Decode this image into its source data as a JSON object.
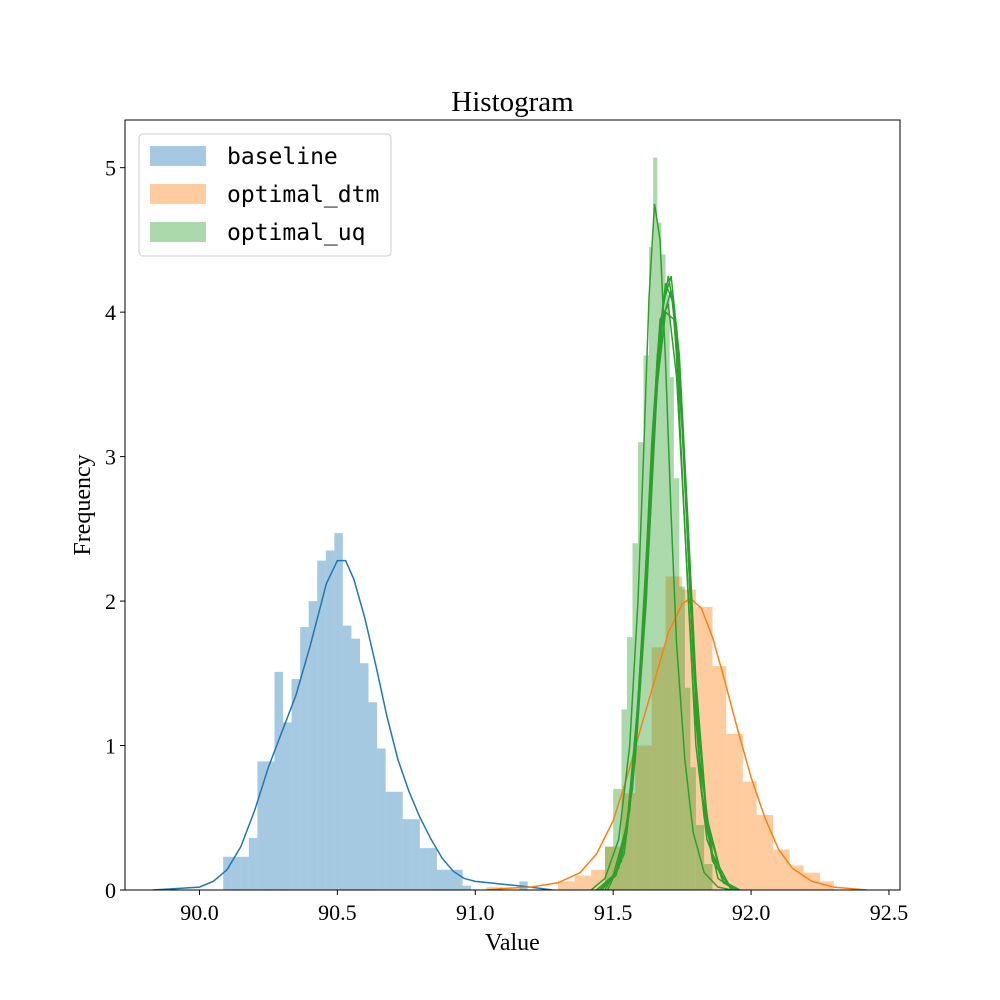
{
  "chart_data": {
    "type": "histogram",
    "title": "Histogram",
    "xlabel": "Value",
    "ylabel": "Frequency",
    "xlim": [
      89.73,
      92.54
    ],
    "ylim": [
      0,
      5.33
    ],
    "xticks": [
      90.0,
      90.5,
      91.0,
      91.5,
      92.0,
      92.5
    ],
    "xtick_labels": [
      "90.0",
      "90.5",
      "91.0",
      "91.5",
      "92.0",
      "92.5"
    ],
    "yticks": [
      0,
      1,
      2,
      3,
      4,
      5
    ],
    "ytick_labels": [
      "0",
      "1",
      "2",
      "3",
      "4",
      "5"
    ],
    "grid": false,
    "legend_position": "top-left",
    "series": [
      {
        "name": "baseline",
        "color": "#1f77b4",
        "bar_alpha": 0.4,
        "bins": [
          {
            "x0": 90.086,
            "x1": 90.117,
            "h": 0.23
          },
          {
            "x0": 90.117,
            "x1": 90.148,
            "h": 0.23
          },
          {
            "x0": 90.148,
            "x1": 90.179,
            "h": 0.23
          },
          {
            "x0": 90.179,
            "x1": 90.21,
            "h": 0.36
          },
          {
            "x0": 90.21,
            "x1": 90.241,
            "h": 0.89
          },
          {
            "x0": 90.241,
            "x1": 90.272,
            "h": 0.89
          },
          {
            "x0": 90.272,
            "x1": 90.303,
            "h": 1.51
          },
          {
            "x0": 90.303,
            "x1": 90.334,
            "h": 1.16
          },
          {
            "x0": 90.334,
            "x1": 90.365,
            "h": 1.46
          },
          {
            "x0": 90.365,
            "x1": 90.396,
            "h": 1.82
          },
          {
            "x0": 90.396,
            "x1": 90.427,
            "h": 2.0
          },
          {
            "x0": 90.427,
            "x1": 90.458,
            "h": 2.28
          },
          {
            "x0": 90.458,
            "x1": 90.489,
            "h": 2.35
          },
          {
            "x0": 90.489,
            "x1": 90.52,
            "h": 2.47
          },
          {
            "x0": 90.52,
            "x1": 90.551,
            "h": 1.83
          },
          {
            "x0": 90.551,
            "x1": 90.582,
            "h": 1.74
          },
          {
            "x0": 90.582,
            "x1": 90.613,
            "h": 1.57
          },
          {
            "x0": 90.613,
            "x1": 90.644,
            "h": 1.3
          },
          {
            "x0": 90.644,
            "x1": 90.675,
            "h": 0.98
          },
          {
            "x0": 90.675,
            "x1": 90.706,
            "h": 0.68
          },
          {
            "x0": 90.706,
            "x1": 90.737,
            "h": 0.68
          },
          {
            "x0": 90.737,
            "x1": 90.768,
            "h": 0.49
          },
          {
            "x0": 90.768,
            "x1": 90.799,
            "h": 0.49
          },
          {
            "x0": 90.799,
            "x1": 90.83,
            "h": 0.29
          },
          {
            "x0": 90.83,
            "x1": 90.861,
            "h": 0.29
          },
          {
            "x0": 90.861,
            "x1": 90.892,
            "h": 0.14
          },
          {
            "x0": 90.892,
            "x1": 90.923,
            "h": 0.14
          },
          {
            "x0": 90.923,
            "x1": 90.954,
            "h": 0.14
          },
          {
            "x0": 90.954,
            "x1": 90.985,
            "h": 0.03
          },
          {
            "x0": 91.16,
            "x1": 91.19,
            "h": 0.06
          }
        ],
        "kde": [
          [
            89.83,
            0.0
          ],
          [
            89.92,
            0.01
          ],
          [
            90.0,
            0.02
          ],
          [
            90.05,
            0.06
          ],
          [
            90.1,
            0.14
          ],
          [
            90.15,
            0.3
          ],
          [
            90.2,
            0.55
          ],
          [
            90.25,
            0.85
          ],
          [
            90.3,
            1.1
          ],
          [
            90.35,
            1.35
          ],
          [
            90.4,
            1.68
          ],
          [
            90.43,
            1.9
          ],
          [
            90.46,
            2.12
          ],
          [
            90.5,
            2.28
          ],
          [
            90.53,
            2.28
          ],
          [
            90.56,
            2.15
          ],
          [
            90.6,
            1.88
          ],
          [
            90.64,
            1.55
          ],
          [
            90.68,
            1.2
          ],
          [
            90.72,
            0.9
          ],
          [
            90.76,
            0.68
          ],
          [
            90.8,
            0.5
          ],
          [
            90.84,
            0.35
          ],
          [
            90.88,
            0.22
          ],
          [
            90.92,
            0.13
          ],
          [
            90.96,
            0.08
          ],
          [
            91.0,
            0.06
          ],
          [
            91.05,
            0.05
          ],
          [
            91.1,
            0.04
          ],
          [
            91.15,
            0.03
          ],
          [
            91.2,
            0.02
          ],
          [
            91.28,
            0.0
          ]
        ]
      },
      {
        "name": "optimal_dtm",
        "color": "#ff7f0e",
        "bar_alpha": 0.4,
        "bins": [
          {
            "x0": 91.04,
            "x1": 91.1,
            "h": 0.02
          },
          {
            "x0": 91.3,
            "x1": 91.36,
            "h": 0.06
          },
          {
            "x0": 91.36,
            "x1": 91.42,
            "h": 0.1
          },
          {
            "x0": 91.42,
            "x1": 91.47,
            "h": 0.14
          },
          {
            "x0": 91.47,
            "x1": 91.53,
            "h": 0.3
          },
          {
            "x0": 91.53,
            "x1": 91.58,
            "h": 0.67
          },
          {
            "x0": 91.58,
            "x1": 91.64,
            "h": 1.0
          },
          {
            "x0": 91.64,
            "x1": 91.69,
            "h": 1.68
          },
          {
            "x0": 91.69,
            "x1": 91.75,
            "h": 2.17
          },
          {
            "x0": 91.75,
            "x1": 91.8,
            "h": 2.08
          },
          {
            "x0": 91.8,
            "x1": 91.86,
            "h": 1.96
          },
          {
            "x0": 91.86,
            "x1": 91.91,
            "h": 1.55
          },
          {
            "x0": 91.91,
            "x1": 91.97,
            "h": 1.08
          },
          {
            "x0": 91.97,
            "x1": 92.02,
            "h": 0.75
          },
          {
            "x0": 92.02,
            "x1": 92.08,
            "h": 0.52
          },
          {
            "x0": 92.08,
            "x1": 92.14,
            "h": 0.28
          },
          {
            "x0": 92.14,
            "x1": 92.19,
            "h": 0.17
          },
          {
            "x0": 92.19,
            "x1": 92.25,
            "h": 0.12
          },
          {
            "x0": 92.25,
            "x1": 92.3,
            "h": 0.06
          }
        ],
        "kde": [
          [
            91.04,
            0.0
          ],
          [
            91.1,
            0.01
          ],
          [
            91.2,
            0.02
          ],
          [
            91.3,
            0.05
          ],
          [
            91.38,
            0.12
          ],
          [
            91.44,
            0.25
          ],
          [
            91.5,
            0.48
          ],
          [
            91.55,
            0.78
          ],
          [
            91.6,
            1.12
          ],
          [
            91.65,
            1.45
          ],
          [
            91.7,
            1.78
          ],
          [
            91.75,
            1.98
          ],
          [
            91.78,
            2.02
          ],
          [
            91.82,
            1.95
          ],
          [
            91.86,
            1.75
          ],
          [
            91.9,
            1.48
          ],
          [
            91.95,
            1.12
          ],
          [
            92.0,
            0.78
          ],
          [
            92.05,
            0.5
          ],
          [
            92.1,
            0.28
          ],
          [
            92.15,
            0.15
          ],
          [
            92.22,
            0.06
          ],
          [
            92.3,
            0.02
          ],
          [
            92.42,
            0.0
          ]
        ]
      },
      {
        "name": "optimal_uq",
        "color": "#2ca02c",
        "bar_alpha": 0.4,
        "bins": [
          {
            "x0": 91.47,
            "x1": 91.5,
            "h": 0.3
          },
          {
            "x0": 91.5,
            "x1": 91.53,
            "h": 0.7
          },
          {
            "x0": 91.53,
            "x1": 91.55,
            "h": 1.25
          },
          {
            "x0": 91.55,
            "x1": 91.57,
            "h": 1.75
          },
          {
            "x0": 91.57,
            "x1": 91.59,
            "h": 2.4
          },
          {
            "x0": 91.59,
            "x1": 91.61,
            "h": 3.1
          },
          {
            "x0": 91.61,
            "x1": 91.63,
            "h": 3.7
          },
          {
            "x0": 91.63,
            "x1": 91.645,
            "h": 4.45
          },
          {
            "x0": 91.645,
            "x1": 91.66,
            "h": 5.07
          },
          {
            "x0": 91.66,
            "x1": 91.675,
            "h": 4.62
          },
          {
            "x0": 91.675,
            "x1": 91.69,
            "h": 4.4
          },
          {
            "x0": 91.69,
            "x1": 91.705,
            "h": 4.12
          },
          {
            "x0": 91.705,
            "x1": 91.72,
            "h": 3.55
          },
          {
            "x0": 91.72,
            "x1": 91.74,
            "h": 2.85
          },
          {
            "x0": 91.74,
            "x1": 91.76,
            "h": 2.1
          },
          {
            "x0": 91.76,
            "x1": 91.78,
            "h": 1.4
          },
          {
            "x0": 91.78,
            "x1": 91.8,
            "h": 0.85
          },
          {
            "x0": 91.8,
            "x1": 91.83,
            "h": 0.45
          },
          {
            "x0": 91.83,
            "x1": 91.86,
            "h": 0.18
          }
        ],
        "kde": [
          [
            91.42,
            0.0
          ],
          [
            91.47,
            0.08
          ],
          [
            91.52,
            0.35
          ],
          [
            91.56,
            1.0
          ],
          [
            91.59,
            2.0
          ],
          [
            91.61,
            3.0
          ],
          [
            91.63,
            4.1
          ],
          [
            91.65,
            4.75
          ],
          [
            91.67,
            4.5
          ],
          [
            91.69,
            3.65
          ],
          [
            91.71,
            2.6
          ],
          [
            91.73,
            1.7
          ],
          [
            91.76,
            0.9
          ],
          [
            91.79,
            0.4
          ],
          [
            91.83,
            0.12
          ],
          [
            91.88,
            0.02
          ],
          [
            91.93,
            0.0
          ]
        ],
        "kde_extra": [
          [
            [
              91.45,
              0.0
            ],
            [
              91.51,
              0.12
            ],
            [
              91.56,
              0.55
            ],
            [
              91.6,
              1.5
            ],
            [
              91.63,
              2.6
            ],
            [
              91.66,
              3.7
            ],
            [
              91.69,
              4.2
            ],
            [
              91.72,
              4.05
            ],
            [
              91.74,
              3.3
            ],
            [
              91.77,
              2.1
            ],
            [
              91.8,
              1.0
            ],
            [
              91.84,
              0.35
            ],
            [
              91.9,
              0.05
            ],
            [
              91.95,
              0.0
            ]
          ],
          [
            [
              91.46,
              0.0
            ],
            [
              91.52,
              0.15
            ],
            [
              91.57,
              0.7
            ],
            [
              91.61,
              1.8
            ],
            [
              91.64,
              2.9
            ],
            [
              91.67,
              3.9
            ],
            [
              91.7,
              4.25
            ],
            [
              91.73,
              3.9
            ],
            [
              91.76,
              2.85
            ],
            [
              91.79,
              1.6
            ],
            [
              91.82,
              0.7
            ],
            [
              91.86,
              0.2
            ],
            [
              91.93,
              0.0
            ]
          ],
          [
            [
              91.44,
              0.0
            ],
            [
              91.5,
              0.1
            ],
            [
              91.55,
              0.45
            ],
            [
              91.59,
              1.3
            ],
            [
              91.62,
              2.3
            ],
            [
              91.65,
              3.3
            ],
            [
              91.68,
              3.95
            ],
            [
              91.71,
              4.15
            ],
            [
              91.74,
              3.6
            ],
            [
              91.77,
              2.5
            ],
            [
              91.8,
              1.35
            ],
            [
              91.84,
              0.45
            ],
            [
              91.9,
              0.06
            ],
            [
              91.96,
              0.0
            ]
          ],
          [
            [
              91.47,
              0.0
            ],
            [
              91.53,
              0.2
            ],
            [
              91.57,
              0.75
            ],
            [
              91.61,
              1.9
            ],
            [
              91.64,
              3.1
            ],
            [
              91.67,
              3.95
            ],
            [
              91.7,
              4.05
            ],
            [
              91.73,
              3.55
            ],
            [
              91.76,
              2.5
            ],
            [
              91.79,
              1.4
            ],
            [
              91.83,
              0.5
            ],
            [
              91.88,
              0.08
            ],
            [
              91.94,
              0.0
            ]
          ],
          [
            [
              91.45,
              0.0
            ],
            [
              91.51,
              0.1
            ],
            [
              91.55,
              0.4
            ],
            [
              91.59,
              1.2
            ],
            [
              91.63,
              2.4
            ],
            [
              91.66,
              3.5
            ],
            [
              91.69,
              4.0
            ],
            [
              91.72,
              3.95
            ],
            [
              91.75,
              3.2
            ],
            [
              91.78,
              2.0
            ],
            [
              91.81,
              0.95
            ],
            [
              91.86,
              0.25
            ],
            [
              91.93,
              0.0
            ]
          ],
          [
            [
              91.48,
              0.0
            ],
            [
              91.54,
              0.25
            ],
            [
              91.58,
              0.9
            ],
            [
              91.62,
              2.0
            ],
            [
              91.65,
              3.2
            ],
            [
              91.68,
              4.05
            ],
            [
              91.71,
              4.25
            ],
            [
              91.74,
              3.7
            ],
            [
              91.77,
              2.6
            ],
            [
              91.8,
              1.45
            ],
            [
              91.84,
              0.5
            ],
            [
              91.9,
              0.05
            ],
            [
              91.95,
              0.0
            ]
          ]
        ]
      }
    ]
  }
}
